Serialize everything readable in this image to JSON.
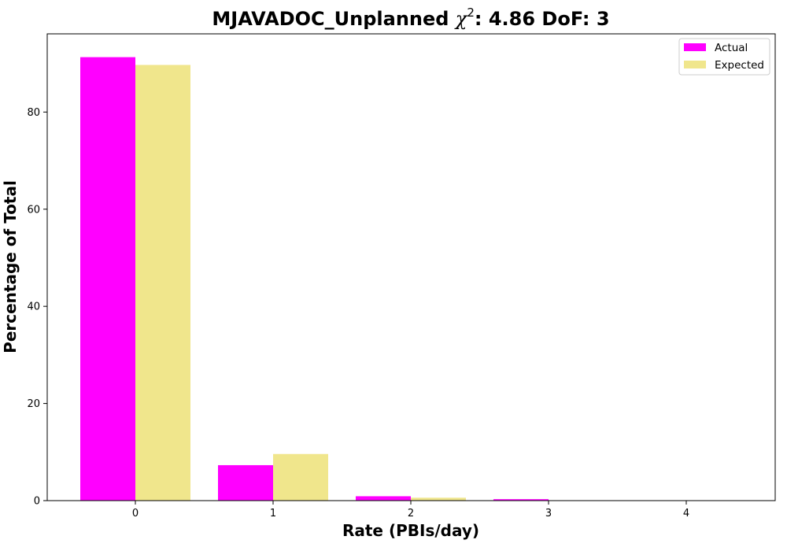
{
  "chart_data": {
    "type": "bar",
    "title": {
      "prefix": "MJAVADOC_Unplanned ",
      "symbol": "χ",
      "superscript": "2",
      "suffix": ": 4.86 DoF: 3"
    },
    "xlabel": "Rate (PBIs/day)",
    "ylabel": "Percentage of Total",
    "categories": [
      "0",
      "1",
      "2",
      "3",
      "4"
    ],
    "ylim": [
      0,
      96.1
    ],
    "yticks": [
      0,
      20,
      40,
      60,
      80
    ],
    "series": [
      {
        "name": "Actual",
        "color": "#ff00ff",
        "values": [
          91.3,
          7.3,
          0.9,
          0.3,
          0
        ]
      },
      {
        "name": "Expected",
        "color": "#f0e68c",
        "values": [
          89.7,
          9.6,
          0.6,
          0,
          0
        ]
      }
    ],
    "legend": {
      "position": "top-right"
    },
    "grid": false
  }
}
